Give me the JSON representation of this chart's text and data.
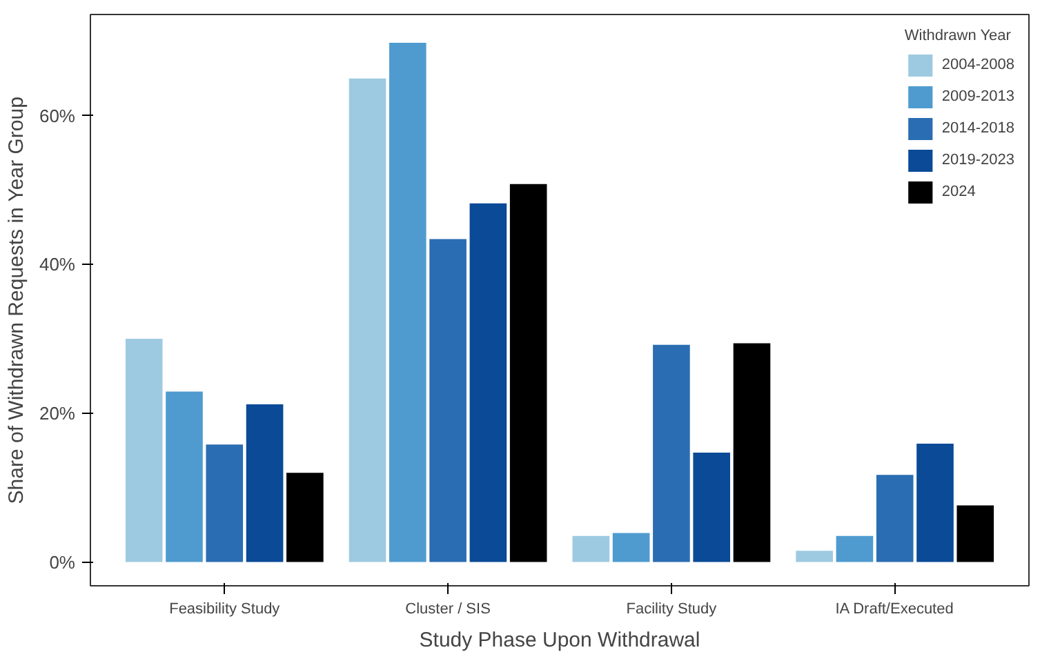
{
  "chart_data": {
    "type": "bar",
    "xlabel": "Study Phase Upon Withdrawal",
    "ylabel": "Share of Withdrawn Requests in Year Group",
    "legend_title": "Withdrawn Year",
    "legend": "top right",
    "grid": false,
    "categories": [
      "Feasibility Study",
      "Cluster / SIS",
      "Facility Study",
      "IA Draft/Executed"
    ],
    "ylim": [
      -3.2,
      73.6
    ],
    "yticks": [
      {
        "value": 0,
        "label": "0%"
      },
      {
        "value": 20,
        "label": "20%"
      },
      {
        "value": 40,
        "label": "40%"
      },
      {
        "value": 60,
        "label": "60%"
      }
    ],
    "series": [
      {
        "name": "2004-2008",
        "color": "#9ecae1",
        "values": [
          30.0,
          65.0,
          3.5,
          1.5
        ]
      },
      {
        "name": "2009-2013",
        "color": "#4f9bd0",
        "values": [
          22.9,
          69.8,
          3.9,
          3.5
        ]
      },
      {
        "name": "2014-2018",
        "color": "#2a6db2",
        "values": [
          15.8,
          43.4,
          29.2,
          11.7
        ]
      },
      {
        "name": "2019-2023",
        "color": "#0a4a97",
        "values": [
          21.2,
          48.2,
          14.7,
          15.9
        ]
      },
      {
        "name": "2024",
        "color": "#000000",
        "values": [
          12.0,
          50.8,
          29.4,
          7.6
        ]
      }
    ]
  }
}
